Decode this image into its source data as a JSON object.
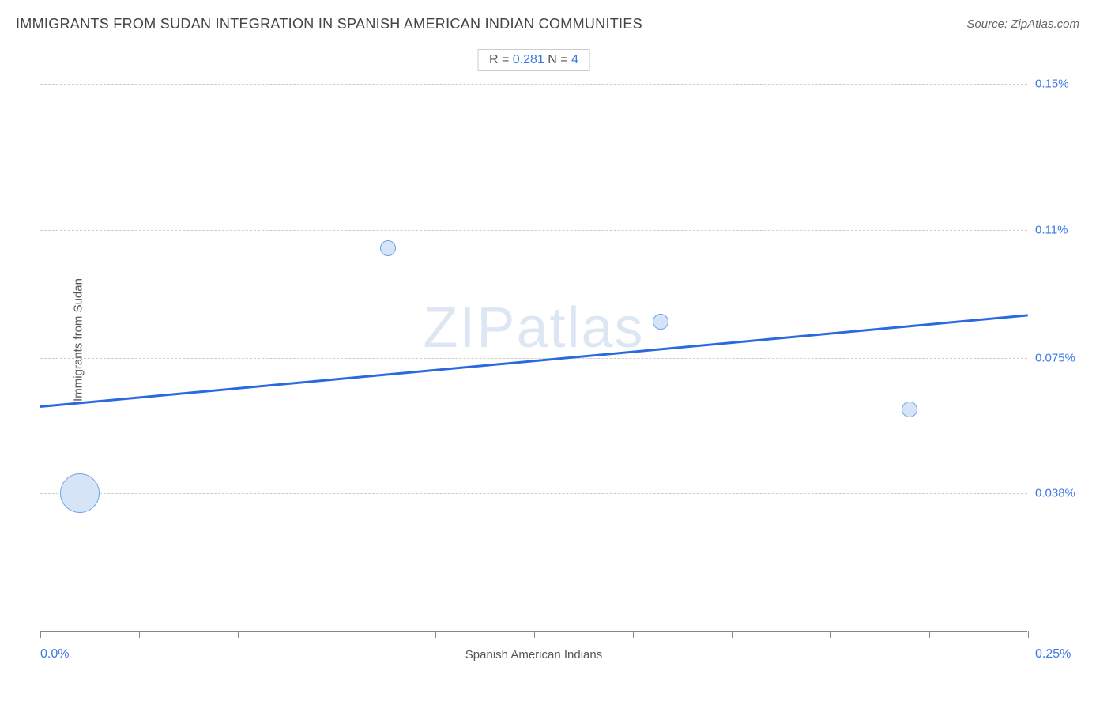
{
  "header": {
    "title": "IMMIGRANTS FROM SUDAN INTEGRATION IN SPANISH AMERICAN INDIAN COMMUNITIES",
    "source_prefix": "Source: ",
    "source_name": "ZipAtlas.com"
  },
  "stats": {
    "r_label": "R = ",
    "r_value": "0.281",
    "n_label": "   N = ",
    "n_value": "4"
  },
  "chart": {
    "type": "scatter",
    "x_axis_title": "Spanish American Indians",
    "y_axis_title": "Immigrants from Sudan",
    "background_color": "#ffffff",
    "grid_color": "#cccccc",
    "axis_color": "#888888",
    "label_color": "#3b78e7",
    "title_color": "#444444",
    "xlim": [
      0.0,
      0.25
    ],
    "ylim": [
      0.0,
      0.16
    ],
    "x_min_label": "0.0%",
    "x_max_label": "0.25%",
    "x_tick_positions": [
      0.0,
      0.025,
      0.05,
      0.075,
      0.1,
      0.125,
      0.15,
      0.175,
      0.2,
      0.225,
      0.25
    ],
    "y_gridlines": [
      {
        "value": 0.038,
        "label": "0.038%"
      },
      {
        "value": 0.075,
        "label": "0.075%"
      },
      {
        "value": 0.11,
        "label": "0.11%"
      },
      {
        "value": 0.15,
        "label": "0.15%"
      }
    ],
    "points": [
      {
        "x": 0.01,
        "y": 0.038,
        "size": 50
      },
      {
        "x": 0.088,
        "y": 0.105,
        "size": 20
      },
      {
        "x": 0.157,
        "y": 0.085,
        "size": 20
      },
      {
        "x": 0.22,
        "y": 0.061,
        "size": 20
      }
    ],
    "point_fill": "#d6e4f7",
    "point_stroke": "#6fa1e8",
    "trendline": {
      "color": "#2a6ae0",
      "width": 2.5,
      "y_at_xmin": 0.062,
      "y_at_xmax": 0.087
    },
    "watermark": {
      "text_a": "ZIP",
      "text_b": "atlas",
      "color": "rgba(120,160,210,0.25)",
      "fontsize": 72
    }
  }
}
